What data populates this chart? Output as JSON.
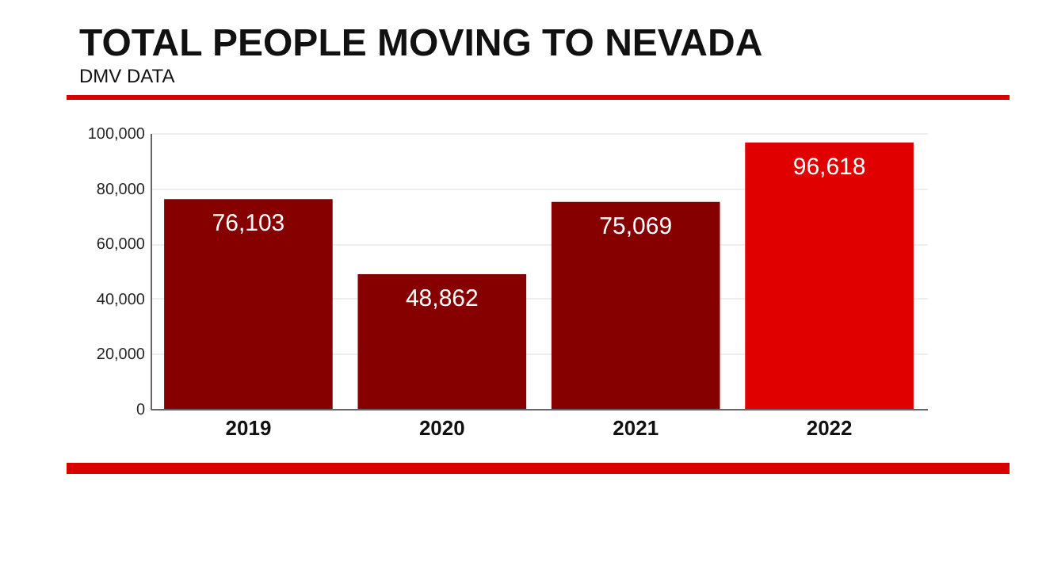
{
  "chart_data": {
    "type": "bar",
    "title": "TOTAL PEOPLE MOVING TO NEVADA",
    "subtitle": "DMV DATA",
    "categories": [
      "2019",
      "2020",
      "2021",
      "2022"
    ],
    "values": [
      76103,
      48862,
      75069,
      96618
    ],
    "value_labels": [
      "76,103",
      "48,862",
      "75,069",
      "96,618"
    ],
    "colors": [
      "#870000",
      "#870000",
      "#870000",
      "#e00000"
    ],
    "ylim": [
      0,
      100000
    ],
    "yticks": [
      0,
      {
        "value": 20000,
        "label": "20,000"
      },
      {
        "value": 40000,
        "label": "40,000"
      },
      {
        "value": 60000,
        "label": "60,000"
      },
      {
        "value": 80000,
        "label": "80,000"
      },
      {
        "value": 100000,
        "label": "100,000"
      }
    ],
    "grid": "y"
  }
}
